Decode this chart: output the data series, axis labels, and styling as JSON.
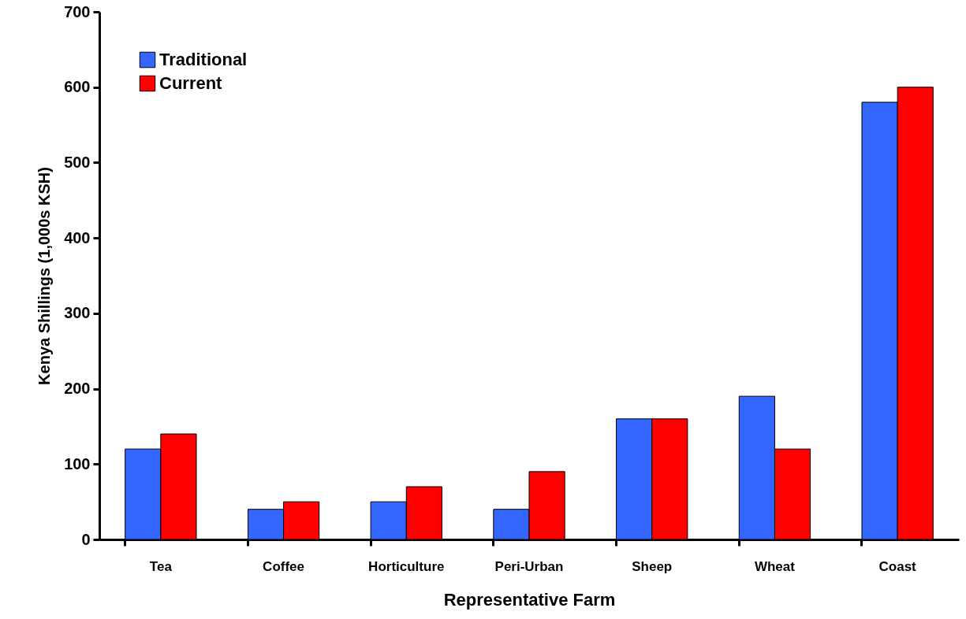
{
  "chart_data": {
    "type": "bar",
    "xlabel": "Representative Farm",
    "ylabel": "Kenya Shillings (1,000s KSH)",
    "categories": [
      "Tea",
      "Coffee",
      "Horticulture",
      "Peri-Urban",
      "Sheep",
      "Wheat",
      "Coast"
    ],
    "series": [
      {
        "name": "Traditional",
        "color": "#3366ff",
        "values": [
          120,
          40,
          50,
          40,
          160,
          190,
          580
        ]
      },
      {
        "name": "Current",
        "color": "#ff0000",
        "values": [
          140,
          50,
          70,
          90,
          160,
          120,
          600
        ]
      }
    ],
    "ylim": [
      0,
      700
    ],
    "yticks": [
      0,
      100,
      200,
      300,
      400,
      500,
      600,
      700
    ],
    "grid": false,
    "legend": "top left"
  }
}
